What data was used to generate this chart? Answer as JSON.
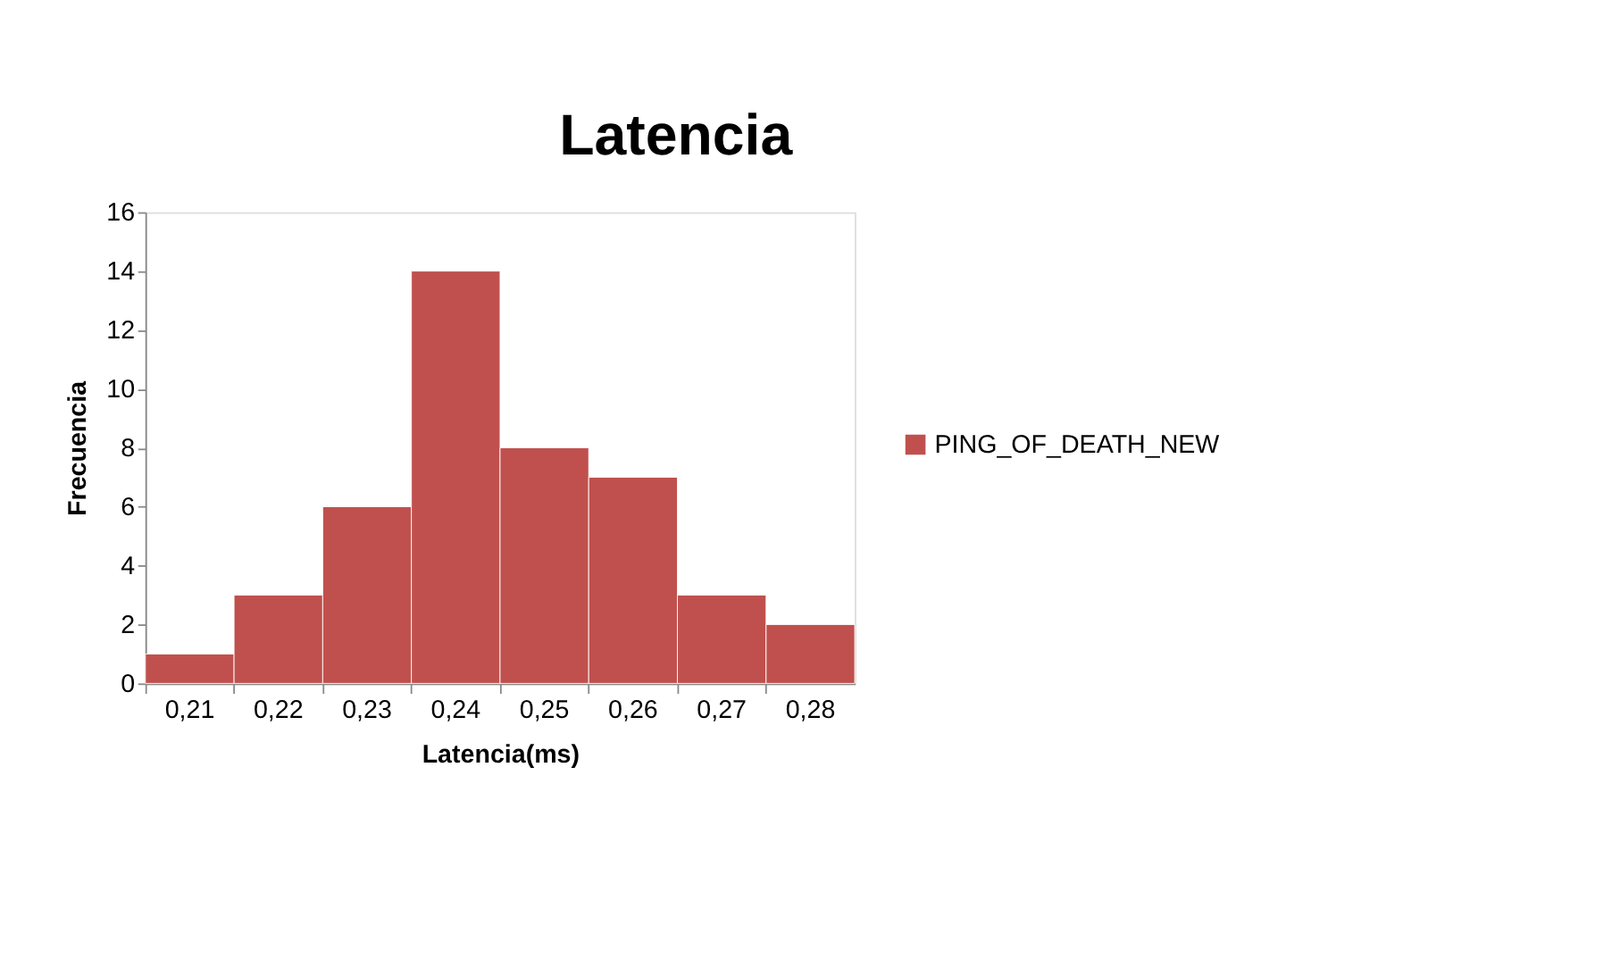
{
  "chart_data": {
    "type": "bar",
    "title": "Latencia",
    "xlabel": "Latencia(ms)",
    "ylabel": "Frecuencia",
    "categories": [
      "0,21",
      "0,22",
      "0,23",
      "0,24",
      "0,25",
      "0,26",
      "0,27",
      "0,28"
    ],
    "series": [
      {
        "name": "PING_OF_DEATH_NEW",
        "color": "#c0504d",
        "values": [
          1,
          3,
          6,
          14,
          8,
          7,
          3,
          2
        ]
      }
    ],
    "ylim": [
      0,
      16
    ],
    "yticks": [
      0,
      2,
      4,
      6,
      8,
      10,
      12,
      14,
      16
    ],
    "grid": false,
    "legend": "right"
  }
}
